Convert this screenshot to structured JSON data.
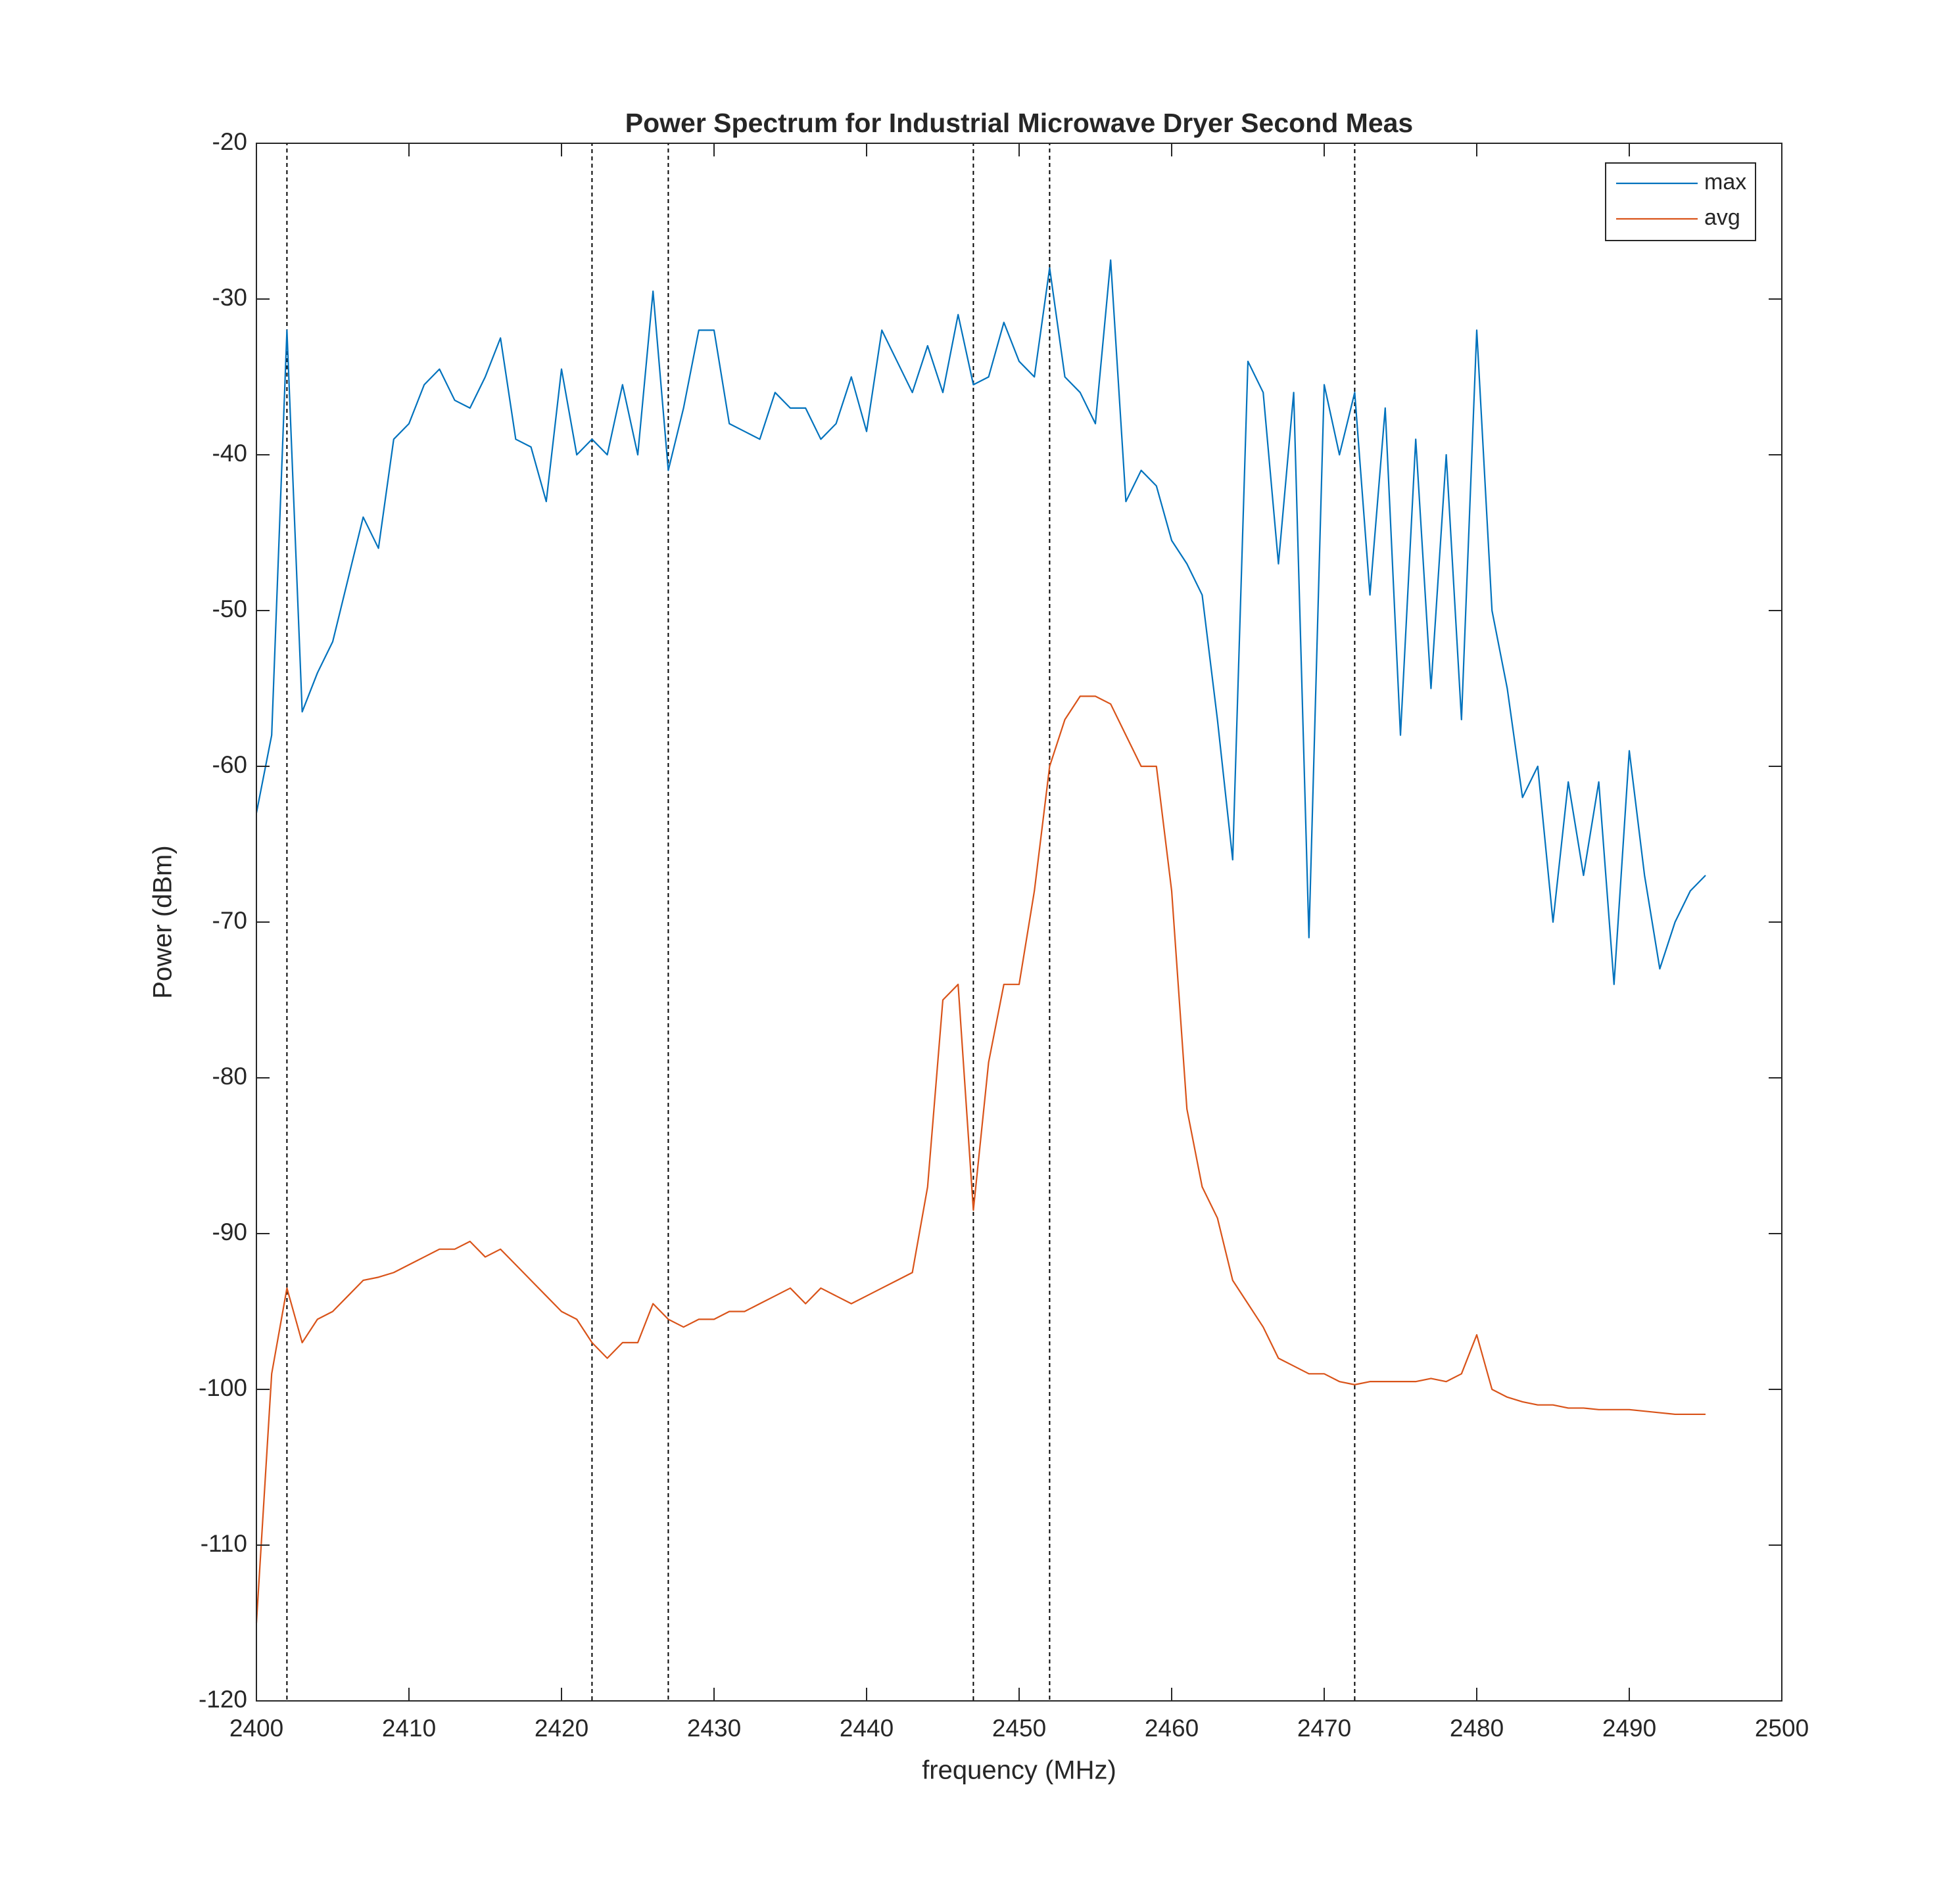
{
  "chart_data": {
    "type": "line",
    "title": "Power Spectrum for Industrial Microwave Dryer Second Meas",
    "xlabel": "frequency (MHz)",
    "ylabel": "Power (dBm)",
    "x": [
      2400,
      2401,
      2402,
      2403,
      2404,
      2405,
      2406,
      2407,
      2408,
      2409,
      2410,
      2411,
      2412,
      2413,
      2414,
      2415,
      2416,
      2417,
      2418,
      2419,
      2420,
      2421,
      2422,
      2423,
      2424,
      2425,
      2426,
      2427,
      2428,
      2429,
      2430,
      2431,
      2432,
      2433,
      2434,
      2435,
      2436,
      2437,
      2438,
      2439,
      2440,
      2441,
      2442,
      2443,
      2444,
      2445,
      2446,
      2447,
      2448,
      2449,
      2450,
      2451,
      2452,
      2453,
      2454,
      2455,
      2456,
      2457,
      2458,
      2459,
      2460,
      2461,
      2462,
      2463,
      2464,
      2465,
      2466,
      2467,
      2468,
      2469,
      2470,
      2471,
      2472,
      2473,
      2474,
      2475,
      2476,
      2477,
      2478,
      2479,
      2480,
      2481,
      2482,
      2483,
      2484,
      2485,
      2486,
      2487,
      2488,
      2489,
      2490,
      2491,
      2492,
      2493,
      2494,
      2495
    ],
    "series": [
      {
        "name": "max",
        "color": "#0072BD",
        "values": [
          -63,
          -58,
          -32,
          -56.5,
          -54,
          -52,
          -48,
          -44,
          -46,
          -39,
          -38,
          -35.5,
          -34.5,
          -36.5,
          -37,
          -35,
          -32.5,
          -39,
          -39.5,
          -43,
          -34.5,
          -40,
          -39,
          -40,
          -35.5,
          -40,
          -29.5,
          -41,
          -37,
          -32,
          -32,
          -38,
          -38.5,
          -39,
          -36,
          -37,
          -37,
          -39,
          -38,
          -35,
          -38.5,
          -32,
          -34,
          -36,
          -33,
          -36,
          -31,
          -35.5,
          -35,
          -31.5,
          -34,
          -35,
          -28,
          -35,
          -36,
          -38,
          -27.5,
          -43,
          -41,
          -42,
          -45.5,
          -47,
          -49,
          -57,
          -66,
          -34,
          -36,
          -47,
          -36,
          -71,
          -35.5,
          -40,
          -36,
          -49,
          -37,
          -58,
          -39,
          -55,
          -40,
          -57,
          -32,
          -50,
          -55,
          -62,
          -60,
          -70,
          -61,
          -67,
          -61,
          -74,
          -59,
          -67,
          -73,
          -70,
          -68,
          -67
        ]
      },
      {
        "name": "avg",
        "color": "#D95319",
        "values": [
          -115,
          -99,
          -93.5,
          -97,
          -95.5,
          -95,
          -94,
          -93,
          -92.8,
          -92.5,
          -92,
          -91.5,
          -91,
          -91,
          -90.5,
          -91.5,
          -91,
          -92,
          -93,
          -94,
          -95,
          -95.5,
          -97,
          -98,
          -97,
          -97,
          -94.5,
          -95.5,
          -96,
          -95.5,
          -95.5,
          -95,
          -95,
          -94.5,
          -94,
          -93.5,
          -94.5,
          -93.5,
          -94,
          -94.5,
          -94,
          -93.5,
          -93,
          -92.5,
          -87,
          -75,
          -74,
          -88.5,
          -79,
          -74,
          -74,
          -68,
          -60,
          -57,
          -55.5,
          -55.5,
          -56,
          -58,
          -60,
          -60,
          -68,
          -82,
          -87,
          -89,
          -93,
          -94.5,
          -96,
          -98,
          -98.5,
          -99,
          -99,
          -99.5,
          -99.7,
          -99.5,
          -99.5,
          -99.5,
          -99.5,
          -99.3,
          -99.5,
          -99,
          -96.5,
          -100,
          -100.5,
          -100.8,
          -101,
          -101,
          -101.2,
          -101.2,
          -101.3,
          -101.3,
          -101.3,
          -101.4,
          -101.5,
          -101.6,
          -101.6,
          -101.6
        ]
      }
    ],
    "channel_bands": [
      [
        2402,
        2422
      ],
      [
        2427,
        2447
      ],
      [
        2452,
        2472
      ]
    ],
    "xlim": [
      2400,
      2500
    ],
    "ylim": [
      -120,
      -20
    ],
    "xticks": [
      2400,
      2410,
      2420,
      2430,
      2440,
      2450,
      2460,
      2470,
      2480,
      2490,
      2500
    ],
    "yticks": [
      -120,
      -110,
      -100,
      -90,
      -80,
      -70,
      -60,
      -50,
      -40,
      -30,
      -20
    ],
    "grid": false,
    "legend": "upper right"
  }
}
